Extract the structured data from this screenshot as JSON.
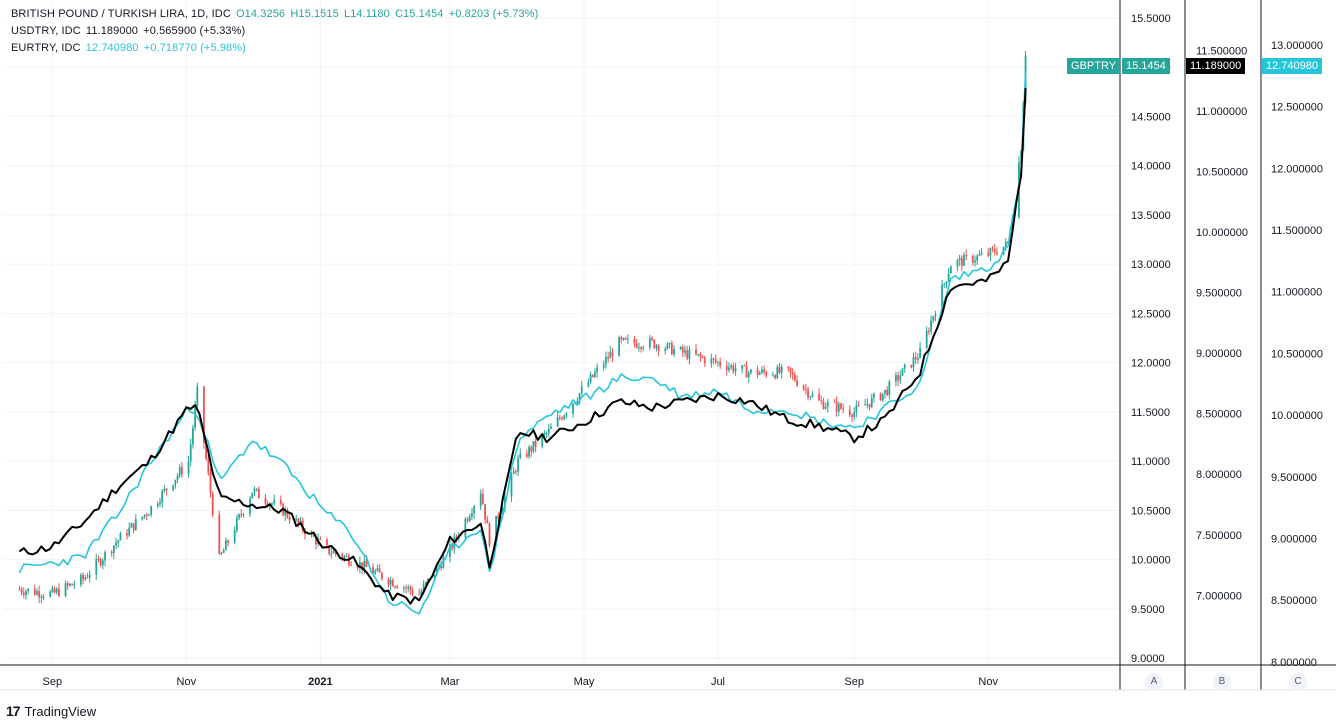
{
  "legend": {
    "gbp": {
      "name": "BRITISH POUND / TURKISH LIRA, 1D, IDC",
      "o": "O14.3256",
      "h": "H15.1515",
      "l": "L14.1180",
      "c": "C15.1454",
      "chg": "+0.8203 (+5.73%)",
      "color": "#26a69a"
    },
    "usd": {
      "name": "USDTRY, IDC",
      "last": "11.189000",
      "chg": "+0.565900 (+5.33%)",
      "color": "#131722"
    },
    "eur": {
      "name": "EURTRY, IDC",
      "last": "12.740980",
      "chg": "+0.718770 (+5.98%)",
      "color": "#26c6da"
    }
  },
  "tags": {
    "gbp_symbol": "GBPTRY",
    "gbp_price": "15.1454",
    "usd_price": "11.189000",
    "eur_price": "12.740980"
  },
  "scale_letters": [
    "A",
    "B",
    "C"
  ],
  "brand": "TradingView",
  "colors": {
    "up": "#26a69a",
    "down": "#ef5350",
    "usd": "#000000",
    "eur": "#26c6da",
    "grid": "#f0f3fa",
    "axis": "#131722"
  },
  "chart_data": {
    "type": "line",
    "title": "BRITISH POUND / TURKISH LIRA, 1D, IDC",
    "x_labels": [
      "Sep",
      "Nov",
      "2021",
      "Mar",
      "May",
      "Jul",
      "Sep",
      "Nov"
    ],
    "axes": {
      "A": {
        "ticks": [
          "15.5000",
          "15.0000",
          "14.5000",
          "14.0000",
          "13.5000",
          "13.0000",
          "12.5000",
          "12.0000",
          "11.5000",
          "11.0000",
          "10.5000",
          "10.0000",
          "9.5000",
          "9.0000"
        ],
        "range": [
          8.9,
          15.6
        ]
      },
      "B": {
        "ticks": [
          "11.500000",
          "11.000000",
          "10.500000",
          "10.000000",
          "9.500000",
          "9.000000",
          "8.500000",
          "8.000000",
          "7.500000",
          "7.000000"
        ],
        "range": [
          6.4,
          11.85
        ]
      },
      "C": {
        "ticks": [
          "13.000000",
          "12.500000",
          "12.000000",
          "11.500000",
          "11.000000",
          "10.500000",
          "10.000000",
          "9.500000",
          "9.000000",
          "8.500000",
          "8.000000"
        ],
        "range": [
          7.95,
          13.3
        ]
      }
    },
    "x": [
      "2020-08-17",
      "2020-09-01",
      "2020-09-15",
      "2020-10-01",
      "2020-10-15",
      "2020-11-02",
      "2020-11-06",
      "2020-11-16",
      "2020-12-01",
      "2020-12-15",
      "2021-01-04",
      "2021-01-15",
      "2021-02-01",
      "2021-02-15",
      "2021-03-01",
      "2021-03-15",
      "2021-03-19",
      "2021-04-01",
      "2021-04-15",
      "2021-05-03",
      "2021-05-17",
      "2021-06-01",
      "2021-06-15",
      "2021-07-01",
      "2021-07-15",
      "2021-08-02",
      "2021-08-16",
      "2021-09-01",
      "2021-09-15",
      "2021-10-01",
      "2021-10-15",
      "2021-11-01",
      "2021-11-10",
      "2021-11-16",
      "2021-11-18"
    ],
    "series": [
      {
        "name": "BRITISH POUND / TURKISH LIRA",
        "axis": "A",
        "values": [
          9.7,
          9.65,
          9.8,
          10.2,
          10.5,
          11.0,
          11.7,
          10.0,
          10.7,
          10.5,
          10.1,
          10.0,
          9.8,
          9.65,
          10.1,
          10.7,
          10.2,
          11.0,
          11.3,
          11.8,
          12.2,
          12.2,
          12.1,
          12.0,
          11.9,
          11.9,
          11.6,
          11.5,
          11.7,
          12.1,
          13.0,
          13.1,
          13.2,
          14.2,
          15.15
        ]
      },
      {
        "name": "USDTRY",
        "axis": "B",
        "values": [
          7.35,
          7.4,
          7.6,
          7.9,
          8.1,
          8.55,
          8.55,
          7.8,
          7.75,
          7.7,
          7.4,
          7.3,
          7.0,
          6.95,
          7.45,
          7.6,
          7.25,
          8.35,
          8.3,
          8.45,
          8.6,
          8.55,
          8.6,
          8.65,
          8.6,
          8.45,
          8.4,
          8.3,
          8.45,
          8.85,
          9.55,
          9.6,
          9.75,
          10.5,
          11.189
        ]
      },
      {
        "name": "EURTRY",
        "axis": "C",
        "values": [
          8.75,
          8.8,
          8.85,
          9.2,
          9.6,
          10.05,
          10.05,
          9.45,
          9.8,
          9.6,
          9.2,
          9.05,
          8.5,
          8.4,
          8.9,
          9.1,
          8.7,
          9.8,
          10.0,
          10.15,
          10.3,
          10.3,
          10.15,
          10.2,
          10.05,
          10.05,
          9.95,
          9.9,
          10.05,
          10.25,
          11.1,
          11.2,
          11.35,
          12.0,
          12.741
        ]
      }
    ]
  }
}
